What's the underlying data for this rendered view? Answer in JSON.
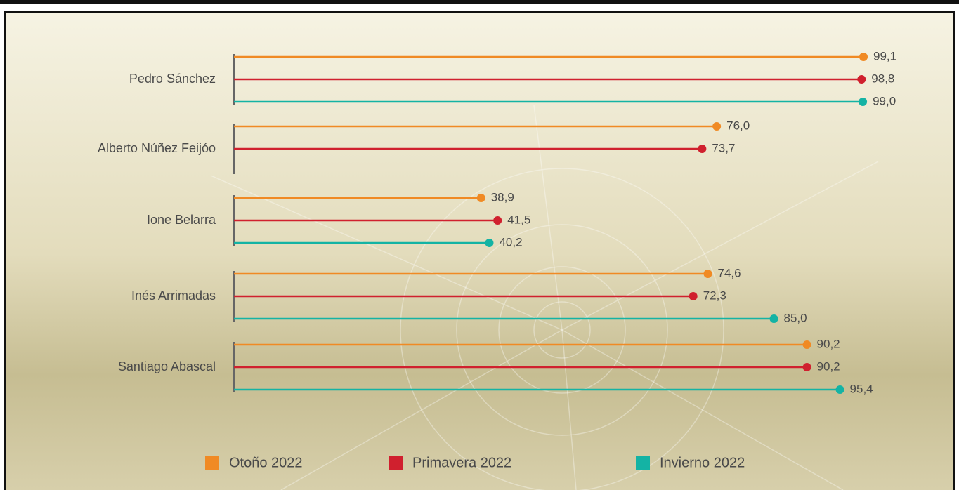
{
  "chart_data": {
    "type": "lollipop",
    "categories": [
      "Pedro Sánchez",
      "Alberto Núñez Feijóo",
      "Ione Belarra",
      "Inés Arrimadas",
      "Santiago Abascal"
    ],
    "series": [
      {
        "name": "Otoño 2022",
        "color": "#f08a24",
        "values": [
          99.1,
          76.0,
          38.9,
          74.6,
          90.2
        ],
        "value_labels": [
          "99,1",
          "76,0",
          "38,9",
          "74,6",
          "90,2"
        ]
      },
      {
        "name": "Primavera 2022",
        "color": "#d0202e",
        "values": [
          98.8,
          73.7,
          41.5,
          72.3,
          90.2
        ],
        "value_labels": [
          "98,8",
          "73,7",
          "41,5",
          "72,3",
          "90,2"
        ]
      },
      {
        "name": "Invierno 2022",
        "color": "#14b3a4",
        "values": [
          99.0,
          null,
          40.2,
          85.0,
          95.4
        ],
        "value_labels": [
          "99,0",
          null,
          "40,2",
          "85,0",
          "95,4"
        ]
      }
    ]
  }
}
